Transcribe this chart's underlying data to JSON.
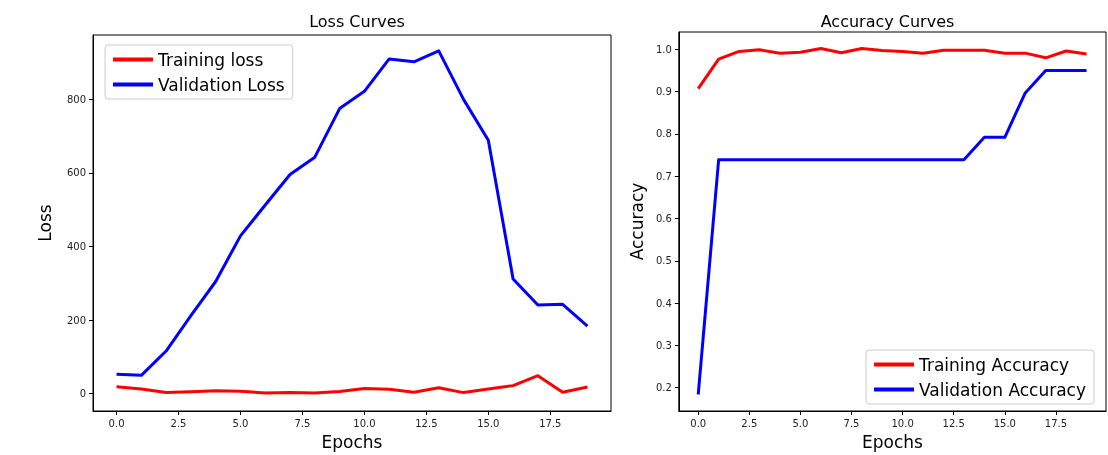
{
  "chart_data": [
    {
      "type": "line",
      "title": "Loss Curves",
      "xlabel": "Epochs",
      "ylabel": "Loss",
      "x": [
        0,
        1,
        2,
        3,
        4,
        5,
        6,
        7,
        8,
        9,
        10,
        11,
        12,
        13,
        14,
        15,
        16,
        17,
        18,
        19
      ],
      "series": [
        {
          "name": "Training loss",
          "color": "#ff0000",
          "values": [
            19,
            13,
            3,
            5,
            8,
            7,
            2,
            3,
            2,
            6,
            14,
            12,
            4,
            16,
            3,
            13,
            22,
            49,
            4,
            18
          ]
        },
        {
          "name": "Validation Loss",
          "color": "#0000ff",
          "values": [
            53,
            50,
            116,
            212,
            305,
            429,
            513,
            596,
            643,
            775,
            822,
            910,
            902,
            932,
            800,
            689,
            312,
            241,
            243,
            184
          ]
        }
      ],
      "xlim": [
        -0.95,
        19.95
      ],
      "ylim": [
        -47,
        975
      ],
      "xticks": [
        {
          "value": 0,
          "label": "0.0"
        },
        {
          "value": 2.5,
          "label": "2.5"
        },
        {
          "value": 5,
          "label": "5.0"
        },
        {
          "value": 7.5,
          "label": "7.5"
        },
        {
          "value": 10,
          "label": "10.0"
        },
        {
          "value": 12.5,
          "label": "12.5"
        },
        {
          "value": 15,
          "label": "15.0"
        },
        {
          "value": 17.5,
          "label": "17.5"
        }
      ],
      "yticks": [
        0,
        200,
        400,
        600,
        800
      ],
      "grid": false,
      "legend": "top left",
      "marker": "none",
      "line_style": "solid"
    },
    {
      "type": "line",
      "title": "Accuracy Curves",
      "xlabel": "Epochs",
      "ylabel": "Accuracy",
      "x": [
        0,
        1,
        2,
        3,
        4,
        5,
        6,
        7,
        8,
        9,
        10,
        11,
        12,
        13,
        14,
        15,
        16,
        17,
        18,
        19
      ],
      "series": [
        {
          "name": "Training Accuracy",
          "color": "#ff0000",
          "values": [
            0.907,
            0.977,
            0.995,
            0.999,
            0.991,
            0.993,
            1.002,
            0.992,
            1.002,
            0.997,
            0.995,
            0.991,
            0.998,
            0.998,
            0.998,
            0.991,
            0.991,
            0.98,
            0.996,
            0.989
          ]
        },
        {
          "name": "Validation Accuracy",
          "color": "#0000ff",
          "values": [
            0.184,
            0.739,
            0.739,
            0.739,
            0.739,
            0.739,
            0.739,
            0.739,
            0.739,
            0.739,
            0.739,
            0.739,
            0.739,
            0.739,
            0.792,
            0.792,
            0.897,
            0.95,
            0.95,
            0.95
          ]
        }
      ],
      "xlim": [
        -0.95,
        19.95
      ],
      "ylim": [
        0.145,
        1.041
      ],
      "xticks": [
        {
          "value": 0,
          "label": "0.0"
        },
        {
          "value": 2.5,
          "label": "2.5"
        },
        {
          "value": 5,
          "label": "5.0"
        },
        {
          "value": 7.5,
          "label": "7.5"
        },
        {
          "value": 10,
          "label": "10.0"
        },
        {
          "value": 12.5,
          "label": "12.5"
        },
        {
          "value": 15,
          "label": "15.0"
        },
        {
          "value": 17.5,
          "label": "17.5"
        }
      ],
      "yticks": [
        0.2,
        0.3,
        0.4,
        0.5,
        0.6,
        0.7,
        0.8,
        0.9,
        {
          "value": 1,
          "label": "1.0"
        }
      ],
      "grid": false,
      "legend": "bottom right",
      "marker": "none",
      "line_style": "solid"
    }
  ]
}
